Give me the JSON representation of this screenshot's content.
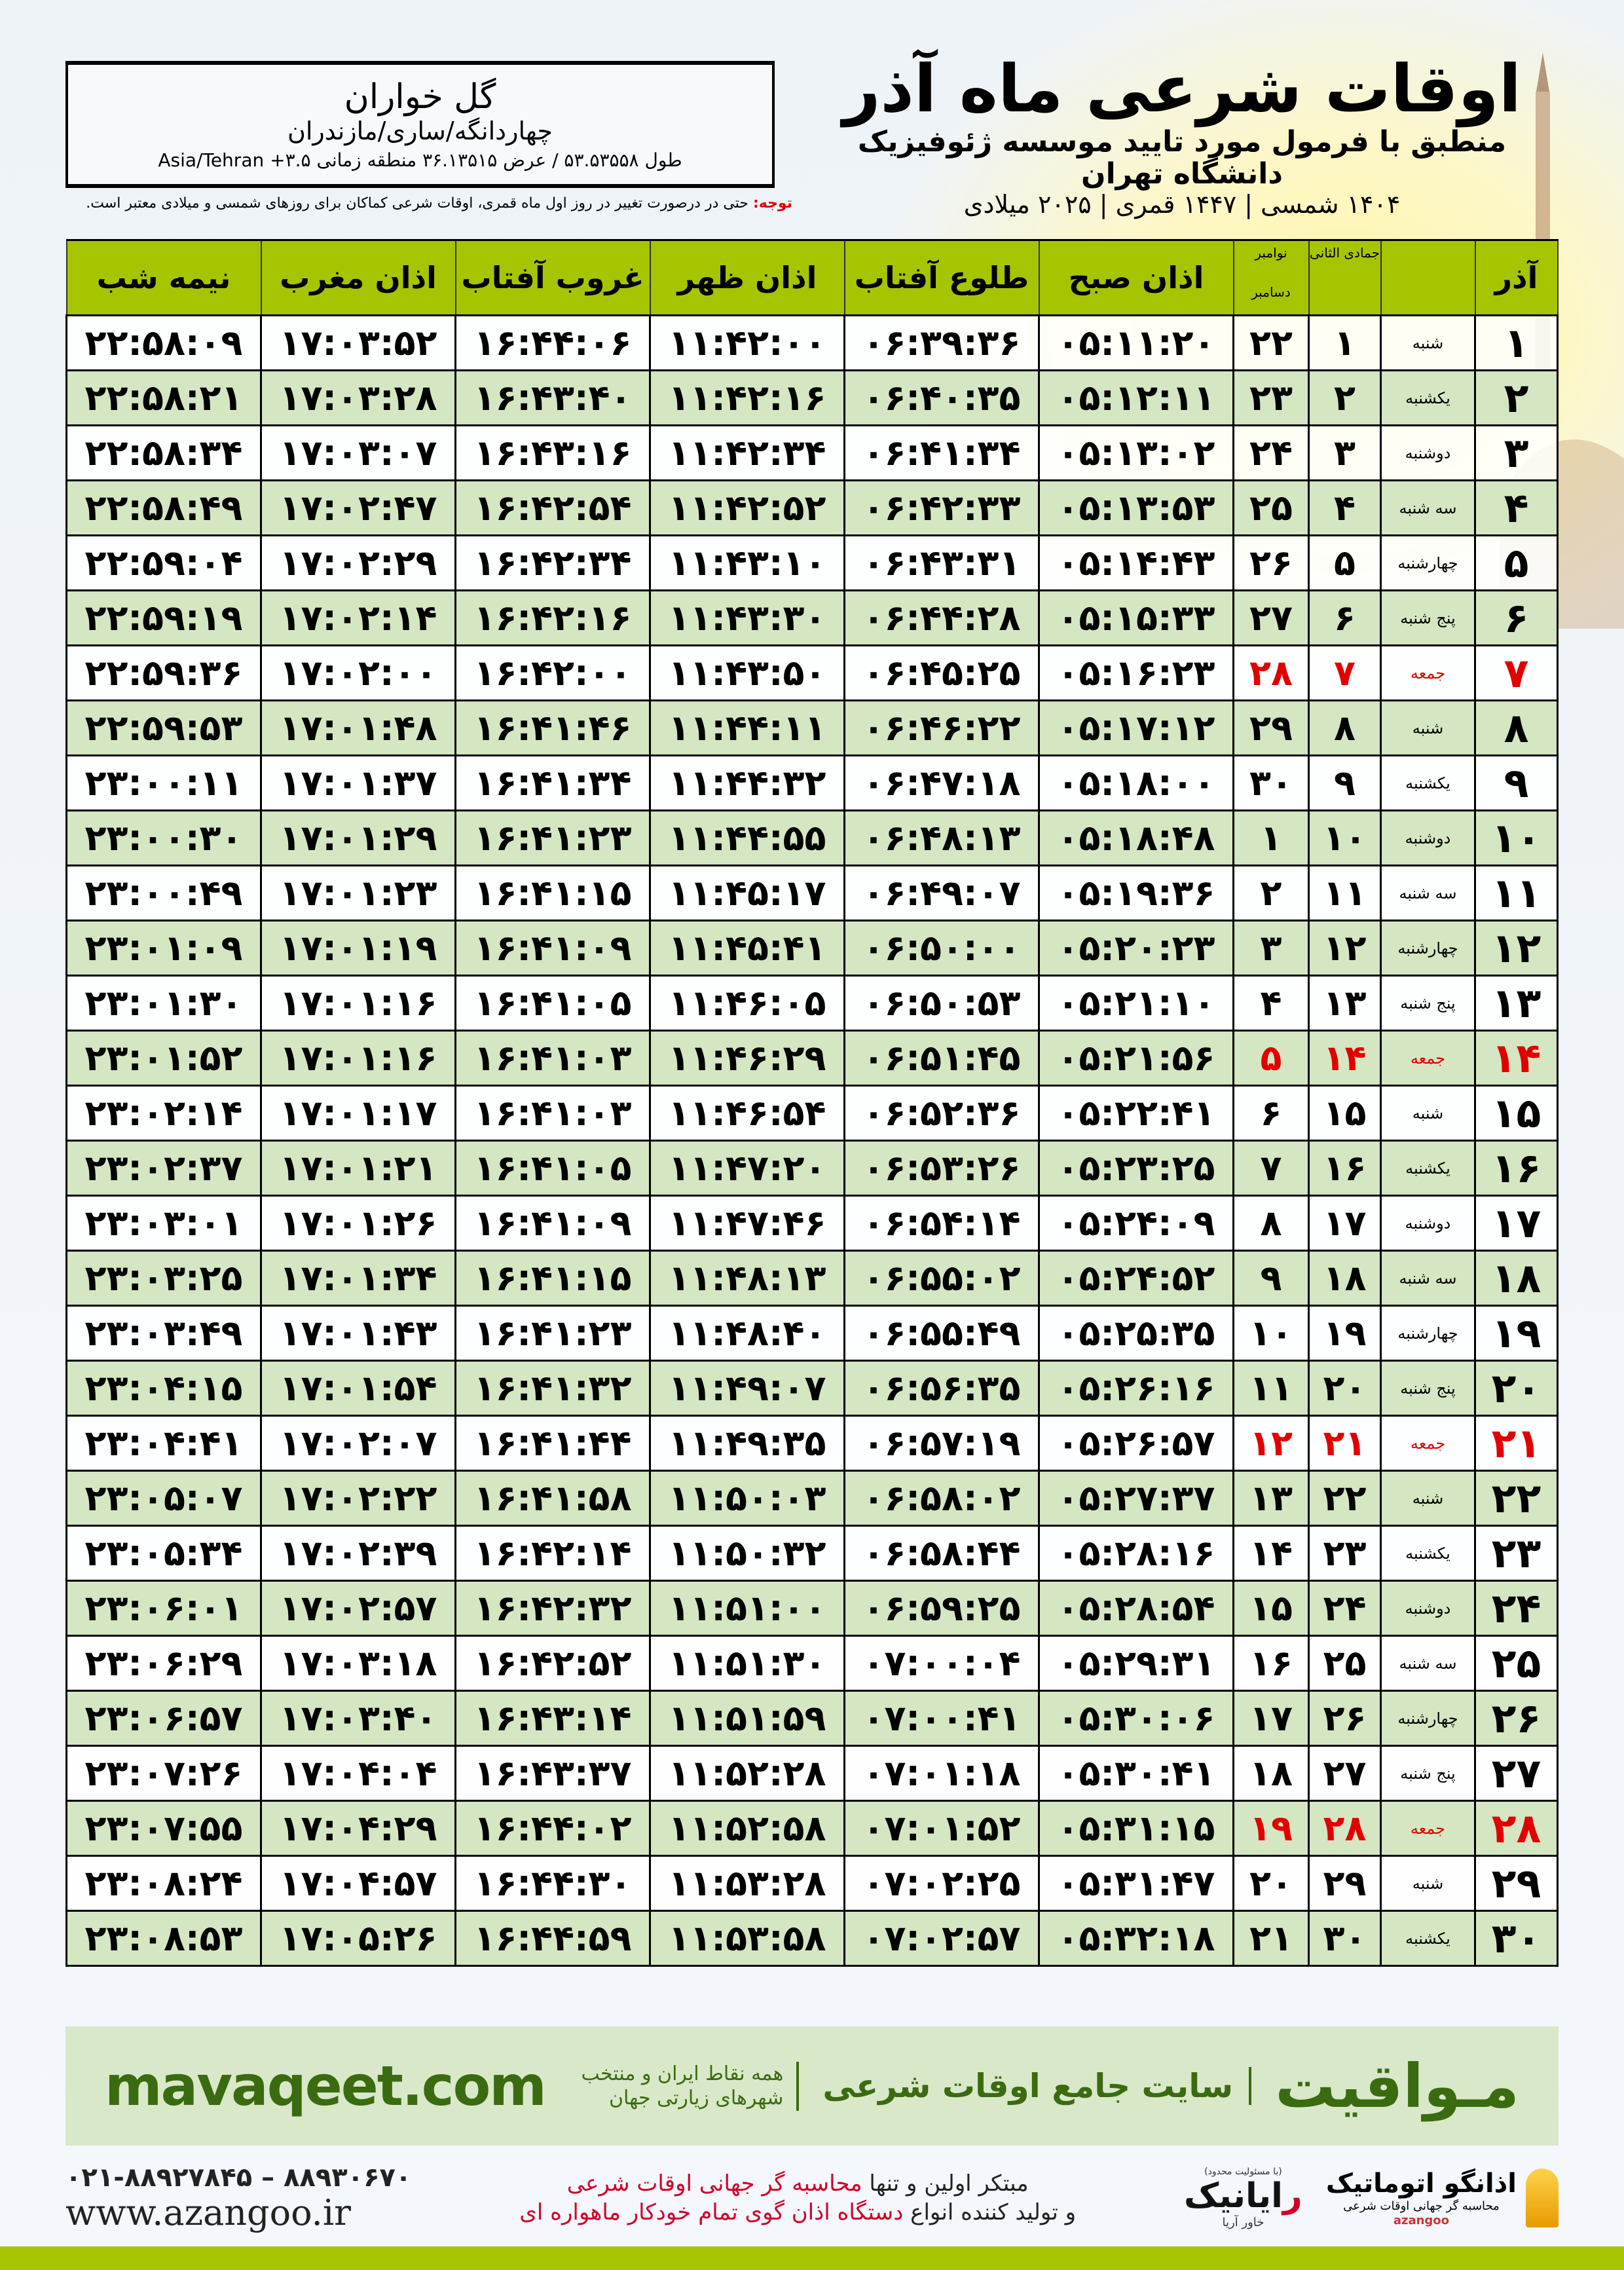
{
  "header": {
    "title": "اوقات شرعی ماه آذر",
    "subtitle": "منطبق با فرمول مورد تایید موسسه ژئوفیزیک دانشگاه تهران",
    "dates": "۱۴۰۴ شمسی | ۱۴۴۷ قمری | ۲۰۲۵ میلادی"
  },
  "location": {
    "city": "گل خواران",
    "region": "چهاردانگه/ساری/مازندران",
    "coords": "طول ۵۳.۵۳۵۵۸ / عرض ۳۶.۱۳۵۱۵ منطقه زمانی ۳.۵+ Asia/Tehran"
  },
  "note": {
    "label": "توجه:",
    "text": " حتی در درصورت تغییر در روز اول ماه قمری، اوقات شرعی کماکان برای روزهای شمسی و میلادی معتبر است."
  },
  "colors": {
    "header_green": "#a6c400",
    "row_green": "#d5e6c2",
    "holiday_red": "#e00000",
    "brand_green": "#3b6b10"
  },
  "table": {
    "headers": {
      "day": "آذر",
      "hijri": "جمادی الثانی",
      "greg_top": "نوامبر",
      "greg_bottom": "دسامبر",
      "fajr": "اذان صبح",
      "sunrise": "طلوع آفتاب",
      "dhuhr": "اذان ظهر",
      "sunset": "غروب آفتاب",
      "maghrib": "اذان مغرب",
      "midnight": "نیمه شب"
    },
    "rows": [
      {
        "d": "۱",
        "w": "شنبه",
        "h": "۱",
        "g": "۲۲",
        "t": [
          "۰۵:۱۱:۲۰",
          "۰۶:۳۹:۳۶",
          "۱۱:۴۲:۰۰",
          "۱۶:۴۴:۰۶",
          "۱۷:۰۳:۵۲",
          "۲۲:۵۸:۰۹"
        ]
      },
      {
        "d": "۲",
        "w": "یکشنبه",
        "h": "۲",
        "g": "۲۳",
        "t": [
          "۰۵:۱۲:۱۱",
          "۰۶:۴۰:۳۵",
          "۱۱:۴۲:۱۶",
          "۱۶:۴۳:۴۰",
          "۱۷:۰۳:۲۸",
          "۲۲:۵۸:۲۱"
        ]
      },
      {
        "d": "۳",
        "w": "دوشنبه",
        "h": "۳",
        "g": "۲۴",
        "t": [
          "۰۵:۱۳:۰۲",
          "۰۶:۴۱:۳۴",
          "۱۱:۴۲:۳۴",
          "۱۶:۴۳:۱۶",
          "۱۷:۰۳:۰۷",
          "۲۲:۵۸:۳۴"
        ]
      },
      {
        "d": "۴",
        "w": "سه شنبه",
        "h": "۴",
        "g": "۲۵",
        "t": [
          "۰۵:۱۳:۵۳",
          "۰۶:۴۲:۳۳",
          "۱۱:۴۲:۵۲",
          "۱۶:۴۲:۵۴",
          "۱۷:۰۲:۴۷",
          "۲۲:۵۸:۴۹"
        ]
      },
      {
        "d": "۵",
        "w": "چهارشنبه",
        "h": "۵",
        "g": "۲۶",
        "t": [
          "۰۵:۱۴:۴۳",
          "۰۶:۴۳:۳۱",
          "۱۱:۴۳:۱۰",
          "۱۶:۴۲:۳۴",
          "۱۷:۰۲:۲۹",
          "۲۲:۵۹:۰۴"
        ]
      },
      {
        "d": "۶",
        "w": "پنج شنبه",
        "h": "۶",
        "g": "۲۷",
        "t": [
          "۰۵:۱۵:۳۳",
          "۰۶:۴۴:۲۸",
          "۱۱:۴۳:۳۰",
          "۱۶:۴۲:۱۶",
          "۱۷:۰۲:۱۴",
          "۲۲:۵۹:۱۹"
        ]
      },
      {
        "d": "۷",
        "w": "جمعه",
        "h": "۷",
        "g": "۲۸",
        "holiday": true,
        "t": [
          "۰۵:۱۶:۲۳",
          "۰۶:۴۵:۲۵",
          "۱۱:۴۳:۵۰",
          "۱۶:۴۲:۰۰",
          "۱۷:۰۲:۰۰",
          "۲۲:۵۹:۳۶"
        ]
      },
      {
        "d": "۸",
        "w": "شنبه",
        "h": "۸",
        "g": "۲۹",
        "t": [
          "۰۵:۱۷:۱۲",
          "۰۶:۴۶:۲۲",
          "۱۱:۴۴:۱۱",
          "۱۶:۴۱:۴۶",
          "۱۷:۰۱:۴۸",
          "۲۲:۵۹:۵۳"
        ]
      },
      {
        "d": "۹",
        "w": "یکشنبه",
        "h": "۹",
        "g": "۳۰",
        "t": [
          "۰۵:۱۸:۰۰",
          "۰۶:۴۷:۱۸",
          "۱۱:۴۴:۳۲",
          "۱۶:۴۱:۳۴",
          "۱۷:۰۱:۳۷",
          "۲۳:۰۰:۱۱"
        ]
      },
      {
        "d": "۱۰",
        "w": "دوشنبه",
        "h": "۱۰",
        "g": "۱",
        "t": [
          "۰۵:۱۸:۴۸",
          "۰۶:۴۸:۱۳",
          "۱۱:۴۴:۵۵",
          "۱۶:۴۱:۲۳",
          "۱۷:۰۱:۲۹",
          "۲۳:۰۰:۳۰"
        ]
      },
      {
        "d": "۱۱",
        "w": "سه شنبه",
        "h": "۱۱",
        "g": "۲",
        "t": [
          "۰۵:۱۹:۳۶",
          "۰۶:۴۹:۰۷",
          "۱۱:۴۵:۱۷",
          "۱۶:۴۱:۱۵",
          "۱۷:۰۱:۲۳",
          "۲۳:۰۰:۴۹"
        ]
      },
      {
        "d": "۱۲",
        "w": "چهارشنبه",
        "h": "۱۲",
        "g": "۳",
        "t": [
          "۰۵:۲۰:۲۳",
          "۰۶:۵۰:۰۰",
          "۱۱:۴۵:۴۱",
          "۱۶:۴۱:۰۹",
          "۱۷:۰۱:۱۹",
          "۲۳:۰۱:۰۹"
        ]
      },
      {
        "d": "۱۳",
        "w": "پنج شنبه",
        "h": "۱۳",
        "g": "۴",
        "t": [
          "۰۵:۲۱:۱۰",
          "۰۶:۵۰:۵۳",
          "۱۱:۴۶:۰۵",
          "۱۶:۴۱:۰۵",
          "۱۷:۰۱:۱۶",
          "۲۳:۰۱:۳۰"
        ]
      },
      {
        "d": "۱۴",
        "w": "جمعه",
        "h": "۱۴",
        "g": "۵",
        "holiday": true,
        "t": [
          "۰۵:۲۱:۵۶",
          "۰۶:۵۱:۴۵",
          "۱۱:۴۶:۲۹",
          "۱۶:۴۱:۰۳",
          "۱۷:۰۱:۱۶",
          "۲۳:۰۱:۵۲"
        ]
      },
      {
        "d": "۱۵",
        "w": "شنبه",
        "h": "۱۵",
        "g": "۶",
        "t": [
          "۰۵:۲۲:۴۱",
          "۰۶:۵۲:۳۶",
          "۱۱:۴۶:۵۴",
          "۱۶:۴۱:۰۳",
          "۱۷:۰۱:۱۷",
          "۲۳:۰۲:۱۴"
        ]
      },
      {
        "d": "۱۶",
        "w": "یکشنبه",
        "h": "۱۶",
        "g": "۷",
        "t": [
          "۰۵:۲۳:۲۵",
          "۰۶:۵۳:۲۶",
          "۱۱:۴۷:۲۰",
          "۱۶:۴۱:۰۵",
          "۱۷:۰۱:۲۱",
          "۲۳:۰۲:۳۷"
        ]
      },
      {
        "d": "۱۷",
        "w": "دوشنبه",
        "h": "۱۷",
        "g": "۸",
        "t": [
          "۰۵:۲۴:۰۹",
          "۰۶:۵۴:۱۴",
          "۱۱:۴۷:۴۶",
          "۱۶:۴۱:۰۹",
          "۱۷:۰۱:۲۶",
          "۲۳:۰۳:۰۱"
        ]
      },
      {
        "d": "۱۸",
        "w": "سه شنبه",
        "h": "۱۸",
        "g": "۹",
        "t": [
          "۰۵:۲۴:۵۲",
          "۰۶:۵۵:۰۲",
          "۱۱:۴۸:۱۳",
          "۱۶:۴۱:۱۵",
          "۱۷:۰۱:۳۴",
          "۲۳:۰۳:۲۵"
        ]
      },
      {
        "d": "۱۹",
        "w": "چهارشنبه",
        "h": "۱۹",
        "g": "۱۰",
        "t": [
          "۰۵:۲۵:۳۵",
          "۰۶:۵۵:۴۹",
          "۱۱:۴۸:۴۰",
          "۱۶:۴۱:۲۳",
          "۱۷:۰۱:۴۳",
          "۲۳:۰۳:۴۹"
        ]
      },
      {
        "d": "۲۰",
        "w": "پنج شنبه",
        "h": "۲۰",
        "g": "۱۱",
        "t": [
          "۰۵:۲۶:۱۶",
          "۰۶:۵۶:۳۵",
          "۱۱:۴۹:۰۷",
          "۱۶:۴۱:۳۲",
          "۱۷:۰۱:۵۴",
          "۲۳:۰۴:۱۵"
        ]
      },
      {
        "d": "۲۱",
        "w": "جمعه",
        "h": "۲۱",
        "g": "۱۲",
        "holiday": true,
        "t": [
          "۰۵:۲۶:۵۷",
          "۰۶:۵۷:۱۹",
          "۱۱:۴۹:۳۵",
          "۱۶:۴۱:۴۴",
          "۱۷:۰۲:۰۷",
          "۲۳:۰۴:۴۱"
        ]
      },
      {
        "d": "۲۲",
        "w": "شنبه",
        "h": "۲۲",
        "g": "۱۳",
        "t": [
          "۰۵:۲۷:۳۷",
          "۰۶:۵۸:۰۲",
          "۱۱:۵۰:۰۳",
          "۱۶:۴۱:۵۸",
          "۱۷:۰۲:۲۲",
          "۲۳:۰۵:۰۷"
        ]
      },
      {
        "d": "۲۳",
        "w": "یکشنبه",
        "h": "۲۳",
        "g": "۱۴",
        "t": [
          "۰۵:۲۸:۱۶",
          "۰۶:۵۸:۴۴",
          "۱۱:۵۰:۳۲",
          "۱۶:۴۲:۱۴",
          "۱۷:۰۲:۳۹",
          "۲۳:۰۵:۳۴"
        ]
      },
      {
        "d": "۲۴",
        "w": "دوشنبه",
        "h": "۲۴",
        "g": "۱۵",
        "t": [
          "۰۵:۲۸:۵۴",
          "۰۶:۵۹:۲۵",
          "۱۱:۵۱:۰۰",
          "۱۶:۴۲:۳۲",
          "۱۷:۰۲:۵۷",
          "۲۳:۰۶:۰۱"
        ]
      },
      {
        "d": "۲۵",
        "w": "سه شنبه",
        "h": "۲۵",
        "g": "۱۶",
        "t": [
          "۰۵:۲۹:۳۱",
          "۰۷:۰۰:۰۴",
          "۱۱:۵۱:۳۰",
          "۱۶:۴۲:۵۲",
          "۱۷:۰۳:۱۸",
          "۲۳:۰۶:۲۹"
        ]
      },
      {
        "d": "۲۶",
        "w": "چهارشنبه",
        "h": "۲۶",
        "g": "۱۷",
        "t": [
          "۰۵:۳۰:۰۶",
          "۰۷:۰۰:۴۱",
          "۱۱:۵۱:۵۹",
          "۱۶:۴۳:۱۴",
          "۱۷:۰۳:۴۰",
          "۲۳:۰۶:۵۷"
        ]
      },
      {
        "d": "۲۷",
        "w": "پنج شنبه",
        "h": "۲۷",
        "g": "۱۸",
        "t": [
          "۰۵:۳۰:۴۱",
          "۰۷:۰۱:۱۸",
          "۱۱:۵۲:۲۸",
          "۱۶:۴۳:۳۷",
          "۱۷:۰۴:۰۴",
          "۲۳:۰۷:۲۶"
        ]
      },
      {
        "d": "۲۸",
        "w": "جمعه",
        "h": "۲۸",
        "g": "۱۹",
        "holiday": true,
        "t": [
          "۰۵:۳۱:۱۵",
          "۰۷:۰۱:۵۲",
          "۱۱:۵۲:۵۸",
          "۱۶:۴۴:۰۲",
          "۱۷:۰۴:۲۹",
          "۲۳:۰۷:۵۵"
        ]
      },
      {
        "d": "۲۹",
        "w": "شنبه",
        "h": "۲۹",
        "g": "۲۰",
        "t": [
          "۰۵:۳۱:۴۷",
          "۰۷:۰۲:۲۵",
          "۱۱:۵۳:۲۸",
          "۱۶:۴۴:۳۰",
          "۱۷:۰۴:۵۷",
          "۲۳:۰۸:۲۴"
        ]
      },
      {
        "d": "۳۰",
        "w": "یکشنبه",
        "h": "۳۰",
        "g": "۲۱",
        "t": [
          "۰۵:۳۲:۱۸",
          "۰۷:۰۲:۵۷",
          "۱۱:۵۳:۵۸",
          "۱۶:۴۴:۵۹",
          "۱۷:۰۵:۲۶",
          "۲۳:۰۸:۵۳"
        ]
      }
    ]
  },
  "banner": {
    "brand": "مـواقیت",
    "site": "سایت جامع اوقات شرعی",
    "scope": "همه نقاط ایران و منتخب شهرهای زیارتی جهان",
    "url": "mavaqeet.com"
  },
  "footer": {
    "phone": "۰۲۱-۸۸۹۲۷۸۴۵ – ۸۸۹۳۰۶۷۰",
    "website": "www.azangoo.ir",
    "line1_a": "مبتکر اولین و تنها ",
    "line1_b": "محاسبه گر جهانی اوقات شرعی",
    "line2_a": "و تولید کننده انواع ",
    "line2_b": "دستگاه اذان گوی تمام خودکار ماهواره ای",
    "rayanik": {
      "r": "ر",
      "rest": "ایانیک",
      "sub": "خاور آریا",
      "ltd": "(با مسئولیت محدود)"
    },
    "azangoo": {
      "name": "اذانگو اتوماتیک",
      "sub": "محاسبه گر جهانی اوقات شرعی",
      "en": "azangoo"
    }
  }
}
